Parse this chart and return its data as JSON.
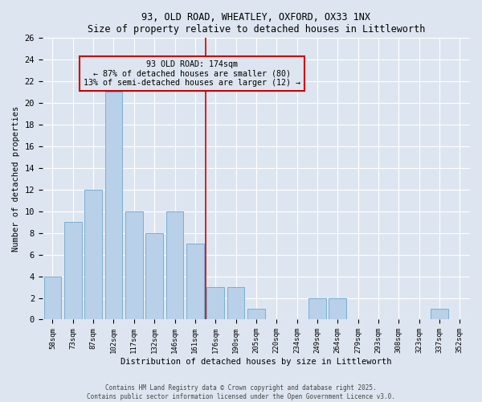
{
  "title": "93, OLD ROAD, WHEATLEY, OXFORD, OX33 1NX",
  "subtitle": "Size of property relative to detached houses in Littleworth",
  "xlabel": "Distribution of detached houses by size in Littleworth",
  "ylabel": "Number of detached properties",
  "categories": [
    "58sqm",
    "73sqm",
    "87sqm",
    "102sqm",
    "117sqm",
    "132sqm",
    "146sqm",
    "161sqm",
    "176sqm",
    "190sqm",
    "205sqm",
    "220sqm",
    "234sqm",
    "249sqm",
    "264sqm",
    "279sqm",
    "293sqm",
    "308sqm",
    "323sqm",
    "337sqm",
    "352sqm"
  ],
  "values": [
    4,
    9,
    12,
    21,
    10,
    8,
    10,
    7,
    3,
    3,
    1,
    0,
    0,
    2,
    2,
    0,
    0,
    0,
    0,
    1,
    0
  ],
  "bar_color": "#b8d0e8",
  "bar_edge_color": "#7aafd4",
  "vline_index": 8,
  "vline_color": "#cc0000",
  "ylim": [
    0,
    26
  ],
  "yticks": [
    0,
    2,
    4,
    6,
    8,
    10,
    12,
    14,
    16,
    18,
    20,
    22,
    24,
    26
  ],
  "annotation_title": "93 OLD ROAD: 174sqm",
  "annotation_line1": "← 87% of detached houses are smaller (80)",
  "annotation_line2": "13% of semi-detached houses are larger (12) →",
  "annotation_box_color": "#cc0000",
  "background_color": "#dde6f0",
  "grid_color": "#ffffff",
  "footer_line1": "Contains HM Land Registry data © Crown copyright and database right 2025.",
  "footer_line2": "Contains public sector information licensed under the Open Government Licence v3.0."
}
